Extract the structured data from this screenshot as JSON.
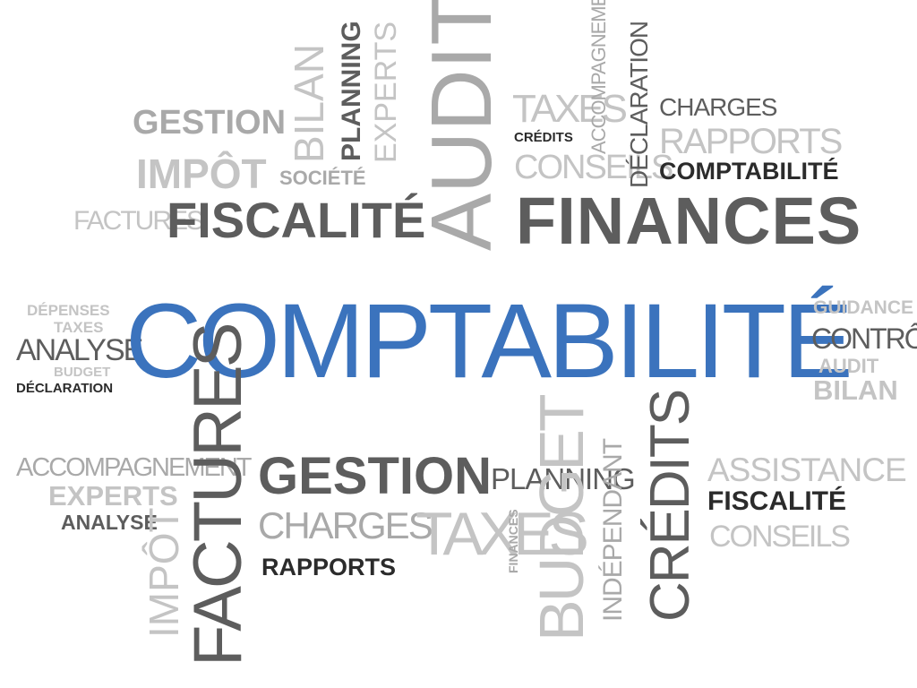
{
  "words": {
    "gestion_top": "GESTION",
    "impot_top": "IMPÔT",
    "factures_top": "FACTURES",
    "fiscalite_top": "FISCALITÉ",
    "bilan_top": "BILAN",
    "societe": "SOCIÉTÉ",
    "planning_top": "PLANNING",
    "experts_top": "EXPERTS",
    "audit_top": "AUDIT",
    "taxes_top": "TAXES",
    "credits_top": "CRÉDITS",
    "conseils_top": "CONSEILS",
    "accompagnement_top": "ACCOMPAGNEMENT",
    "declaration_top": "DÉCLARATION",
    "charges_top": "CHARGES",
    "rapports_top": "RAPPORTS",
    "comptabilite_small": "COMPTABILITÉ",
    "finances_top": "FINANCES",
    "depenses": "DÉPENSES",
    "taxes_left": "TAXES",
    "analyse_left": "ANALYSE",
    "budget_left": "BUDGET",
    "declaration_left": "DÉCLARATION",
    "comptabilite_main": "COMPTABILITÉ",
    "guidance": "GUIDANCE",
    "controle": "CONTRÔLE",
    "audit_right": "AUDIT",
    "bilan_right": "BILAN",
    "accompagnement_bottom": "ACCOMPAGNEMENT",
    "experts_bottom": "EXPERTS",
    "analyse_bottom": "ANALYSE",
    "impot_bottom": "IMPÔT",
    "factures_bottom": "FACTURES",
    "gestion_bottom": "GESTION",
    "charges_bottom": "CHARGES",
    "rapports_bottom": "RAPPORTS",
    "taxes_bottom": "TAXES",
    "planning_bottom": "PLANNING",
    "finances_bottom": "FINANCES",
    "budget_bottom": "BUDGET",
    "independant": "INDÉPENDANT",
    "credits_bottom": "CRÉDITS",
    "assistance": "ASSISTANCE",
    "fiscalite_bottom": "FISCALITÉ",
    "conseils_bottom": "CONSEILS"
  },
  "colors": {
    "accent_blue": "#3b73bd",
    "dark_gray": "#5d5d5d",
    "light_gray": "#c4c4c4"
  }
}
